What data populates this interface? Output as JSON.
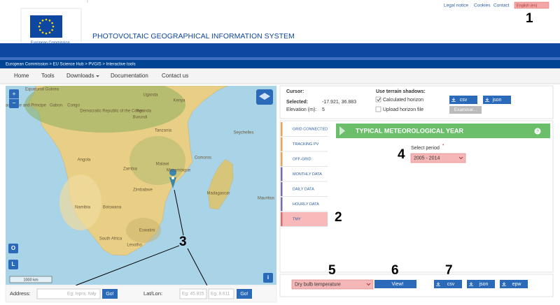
{
  "top_links": [
    "Legal notice",
    "Cookies",
    "Contact"
  ],
  "language": "English (en)",
  "logo": "European Commission",
  "site_title": "PHOTOVOLTAIC GEOGRAPHICAL INFORMATION SYSTEM",
  "breadcrumb": "European Commission > EU Science Hub > PVGIS > Interactive tools",
  "nav": [
    "Home",
    "Tools",
    "Downloads",
    "Documentation",
    "Contact us"
  ],
  "map": {
    "labels": [
      "Equatorial Guinea",
      "Gabon",
      "Congo",
      "Sao Tome and Principe",
      "Democratic Republic of the Congo",
      "Uganda",
      "Kenya",
      "Rwanda",
      "Burundi",
      "Tanzania",
      "Seychelles",
      "Angola",
      "Zambia",
      "Malawi",
      "Comoros",
      "Mozambique",
      "Zimbabwe",
      "Madagascar",
      "Mauritius",
      "Namibia",
      "Botswana",
      "Eswatini",
      "South Africa",
      "Lesotho"
    ],
    "scale": "1000 km",
    "zoom_in": "+",
    "zoom_out": "−",
    "buttons": [
      "O",
      "L"
    ],
    "info": "i"
  },
  "location": {
    "address_label": "Address:",
    "address_placeholder": "Eg: Ispra, Italy",
    "go": "Go!",
    "latlon_label": "Lat/Lon:",
    "lat_placeholder": "Eg: 45.815",
    "lon_placeholder": "Eg: 8.611"
  },
  "cursor": {
    "cursor_label": "Cursor:",
    "selected_label": "Selected:",
    "selected_value": "-17.921, 36.883",
    "elevation_label": "Elevation (m):",
    "elevation_value": 5
  },
  "horizon": {
    "title": "Use terrain shadows:",
    "options": [
      "Calculated horizon",
      "Upload horizon file"
    ],
    "browse": "Examinar...",
    "downloads": [
      "csv",
      "json"
    ]
  },
  "tabs": [
    "GRID CONNECTED",
    "TRACKING PV",
    "OFF-GRID",
    "MONTHLY DATA",
    "DAILY DATA",
    "HOURLY DATA",
    "TMY"
  ],
  "tmy": {
    "title": "TYPICAL METEOROLOGICAL YEAR",
    "help": "?",
    "period_label": "Select period",
    "required": "*",
    "period": "2005 - 2014",
    "variable": "Dry bulb temperature",
    "view": "View!",
    "downloads": [
      "csv",
      "json",
      "epw"
    ]
  },
  "annotations": [
    1,
    2,
    3,
    4,
    5,
    6,
    7
  ]
}
